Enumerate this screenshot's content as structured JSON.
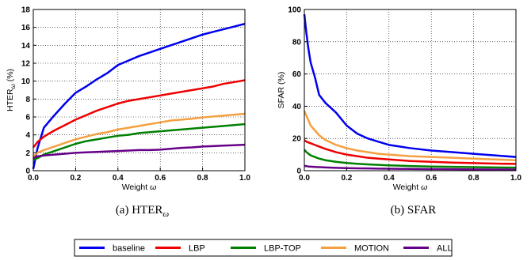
{
  "figure": {
    "legend": [
      {
        "name": "baseline",
        "color": "#0000ee"
      },
      {
        "name": "LBP",
        "color": "#ee0000"
      },
      {
        "name": "LBP-TOP",
        "color": "#008000"
      },
      {
        "name": "MOTION",
        "color": "#f5a040"
      },
      {
        "name": "ALL",
        "color": "#660088"
      }
    ]
  },
  "chart_data": [
    {
      "type": "line",
      "caption_prefix": "(a) ",
      "caption_main": "HTER",
      "caption_sub": "ω",
      "xlabel_text": "Weight ",
      "xlabel_symbol": "ω",
      "ylabel_text": "HTER",
      "ylabel_sub": "ω",
      "ylabel_suffix": " (%)",
      "xlim": [
        0,
        1.0
      ],
      "ylim": [
        0,
        18
      ],
      "xticks": [
        "0.0",
        "0.2",
        "0.4",
        "0.6",
        "0.8",
        "1.0"
      ],
      "yticks": [
        "0",
        "2",
        "4",
        "6",
        "8",
        "10",
        "12",
        "14",
        "16",
        "18"
      ],
      "grid": true,
      "x": [
        0,
        0.02,
        0.05,
        0.1,
        0.15,
        0.2,
        0.25,
        0.3,
        0.35,
        0.4,
        0.45,
        0.5,
        0.55,
        0.6,
        0.65,
        0.7,
        0.75,
        0.8,
        0.85,
        0.9,
        0.95,
        1.0
      ],
      "series": [
        {
          "name": "baseline",
          "values": [
            0.2,
            2.5,
            4.8,
            6.2,
            7.5,
            8.7,
            9.4,
            10.2,
            10.9,
            11.8,
            12.3,
            12.8,
            13.2,
            13.6,
            14.0,
            14.4,
            14.8,
            15.2,
            15.5,
            15.8,
            16.1,
            16.4
          ]
        },
        {
          "name": "LBP",
          "values": [
            2.6,
            3.2,
            3.8,
            4.5,
            5.1,
            5.7,
            6.2,
            6.7,
            7.1,
            7.5,
            7.8,
            8.0,
            8.2,
            8.4,
            8.6,
            8.8,
            9.0,
            9.2,
            9.4,
            9.7,
            9.9,
            10.1
          ]
        },
        {
          "name": "LBP-TOP",
          "values": [
            1.2,
            1.4,
            1.8,
            2.2,
            2.6,
            3.0,
            3.3,
            3.5,
            3.7,
            3.9,
            4.0,
            4.2,
            4.3,
            4.4,
            4.5,
            4.6,
            4.7,
            4.8,
            4.9,
            5.0,
            5.1,
            5.2
          ]
        },
        {
          "name": "MOTION",
          "values": [
            1.6,
            2.0,
            2.3,
            2.7,
            3.1,
            3.5,
            3.8,
            4.1,
            4.3,
            4.6,
            4.8,
            5.0,
            5.2,
            5.4,
            5.6,
            5.7,
            5.8,
            5.95,
            6.05,
            6.15,
            6.25,
            6.35
          ]
        },
        {
          "name": "ALL",
          "values": [
            1.4,
            1.6,
            1.7,
            1.8,
            1.9,
            2.0,
            2.05,
            2.1,
            2.15,
            2.2,
            2.25,
            2.3,
            2.3,
            2.35,
            2.45,
            2.55,
            2.6,
            2.7,
            2.75,
            2.8,
            2.85,
            2.9
          ]
        }
      ]
    },
    {
      "type": "line",
      "caption_prefix": "(b) ",
      "caption_main": "SFAR",
      "caption_sub": "",
      "xlabel_text": "Weight ",
      "xlabel_symbol": "ω",
      "ylabel_text": "SFAR (%)",
      "ylabel_sub": "",
      "ylabel_suffix": "",
      "xlim": [
        0,
        1.0
      ],
      "ylim": [
        0,
        100
      ],
      "xticks": [
        "0.0",
        "0.2",
        "0.4",
        "0.6",
        "0.8",
        "1.0"
      ],
      "yticks": [
        "0",
        "20",
        "40",
        "60",
        "80",
        "100"
      ],
      "grid": true,
      "x": [
        0,
        0.01,
        0.02,
        0.03,
        0.05,
        0.07,
        0.1,
        0.15,
        0.2,
        0.25,
        0.3,
        0.35,
        0.4,
        0.45,
        0.5,
        0.6,
        0.7,
        0.8,
        0.9,
        1.0
      ],
      "series": [
        {
          "name": "baseline",
          "values": [
            97,
            85,
            75,
            67,
            58,
            47,
            42,
            36,
            28,
            23,
            20,
            18,
            16,
            15,
            14,
            12.5,
            11.5,
            10.5,
            9.5,
            8.5
          ]
        },
        {
          "name": "LBP",
          "values": [
            19,
            18,
            17.5,
            17,
            16,
            15,
            13.5,
            11.5,
            10,
            9,
            8,
            7.5,
            7,
            6.5,
            6,
            5.5,
            5,
            4.7,
            4.4,
            4.2
          ]
        },
        {
          "name": "LBP-TOP",
          "values": [
            13,
            11.5,
            10.5,
            9.5,
            8.5,
            7.5,
            6.5,
            5.5,
            4.8,
            4.3,
            3.9,
            3.6,
            3.3,
            3.1,
            2.9,
            2.6,
            2.4,
            2.2,
            2.0,
            1.9
          ]
        },
        {
          "name": "MOTION",
          "values": [
            37,
            34,
            31,
            28,
            25,
            22,
            19,
            16,
            14,
            12.5,
            11.5,
            10.5,
            10,
            9.5,
            9,
            8.5,
            8,
            7.5,
            7,
            6.5
          ]
        },
        {
          "name": "ALL",
          "values": [
            3,
            2.8,
            2.6,
            2.5,
            2.3,
            2.2,
            2.0,
            1.8,
            1.6,
            1.5,
            1.4,
            1.3,
            1.2,
            1.15,
            1.1,
            1.0,
            0.9,
            0.8,
            0.75,
            0.7
          ]
        }
      ]
    }
  ]
}
